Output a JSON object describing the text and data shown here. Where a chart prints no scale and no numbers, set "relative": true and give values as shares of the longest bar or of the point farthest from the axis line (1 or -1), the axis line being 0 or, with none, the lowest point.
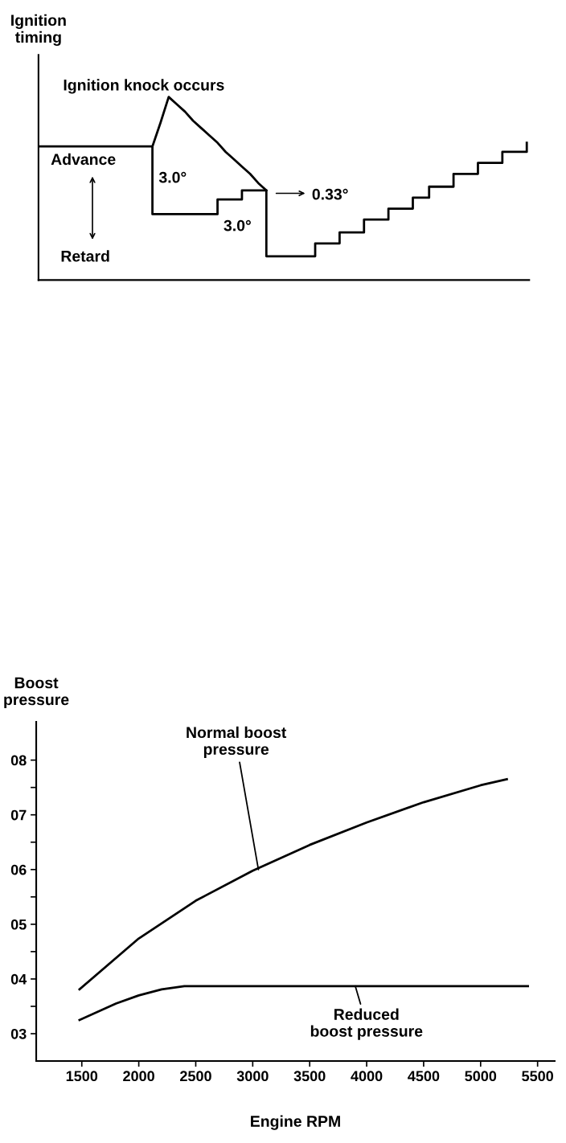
{
  "chart_data": [
    {
      "type": "step",
      "relative": true,
      "ylabel": "Ignition timing",
      "categories": [
        null,
        null,
        null,
        null,
        null,
        null,
        null,
        null,
        null,
        null,
        null,
        null,
        null,
        null,
        null,
        null,
        null,
        null,
        null,
        null,
        null,
        null,
        null,
        null,
        null,
        null,
        null,
        null,
        null,
        null,
        null,
        null,
        null,
        null,
        null,
        null,
        null,
        null,
        null,
        null,
        null,
        null,
        null,
        null,
        null,
        null,
        null,
        null,
        null,
        null,
        null,
        null,
        null,
        null,
        null,
        null,
        null,
        null,
        null,
        null,
        null
      ],
      "series": [
        {
          "type": "step",
          "color": "#000000",
          "values": [
            0.73,
            0.73,
            0.73,
            0.73,
            0.73,
            0.73,
            0.73,
            0.73,
            0.73,
            0.73,
            0.73,
            0.73,
            0.73,
            0.73,
            0.36,
            0.36,
            0.36,
            0.36,
            0.36,
            0.36,
            0.36,
            0.36,
            0.44,
            0.44,
            0.44,
            0.49,
            0.49,
            0.49,
            0.13,
            0.13,
            0.13,
            0.13,
            0.13,
            0.13,
            0.2,
            0.2,
            0.2,
            0.26,
            0.26,
            0.26,
            0.33,
            0.33,
            0.33,
            0.39,
            0.39,
            0.39,
            0.45,
            0.45,
            0.51,
            0.51,
            0.51,
            0.58,
            0.58,
            0.58,
            0.64,
            0.64,
            0.64,
            0.7,
            0.7,
            0.7,
            0.75
          ]
        },
        {
          "type": "line",
          "color": "#000000",
          "values": [
            null,
            null,
            null,
            null,
            null,
            null,
            null,
            null,
            null,
            null,
            null,
            null,
            null,
            null,
            0.73,
            0.86,
            1.0,
            0.96,
            0.92,
            0.87,
            0.83,
            0.79,
            0.75,
            0.7,
            0.66,
            0.62,
            0.58,
            0.53,
            0.49,
            null,
            null,
            null,
            null,
            null,
            null,
            null,
            null,
            null,
            null,
            null,
            null,
            null,
            null,
            null,
            null,
            null,
            null,
            null,
            null,
            null,
            null,
            null,
            null,
            null,
            null,
            null,
            null,
            null,
            null,
            null,
            null
          ]
        }
      ],
      "annotations": [
        "Ignition knock occurs",
        "Advance",
        "Retard",
        "3.0°",
        "3.0°",
        "0.33°"
      ],
      "grid": false
    },
    {
      "type": "line",
      "ylabel": "Boost pressure",
      "xlabel": "Engine RPM",
      "xlim": [
        1100,
        5650
      ],
      "xticks": [
        1500,
        2000,
        2500,
        3000,
        3500,
        4000,
        4500,
        5000,
        5500
      ],
      "ylim": [
        2.5,
        8.7
      ],
      "yticks": [
        {
          "value": 3,
          "label": "03"
        },
        {
          "value": 3.5,
          "label": null
        },
        {
          "value": 4,
          "label": "04"
        },
        {
          "value": 4.5,
          "label": null
        },
        {
          "value": 5,
          "label": "05"
        },
        {
          "value": 5.5,
          "label": null
        },
        {
          "value": 6,
          "label": "06"
        },
        {
          "value": 6.5,
          "label": null
        },
        {
          "value": 7,
          "label": "07"
        },
        {
          "value": 7.5,
          "label": null
        },
        {
          "value": 8,
          "label": "08"
        }
      ],
      "series": [
        {
          "color": "#000000",
          "x": [
            1480,
            2000,
            2500,
            3000,
            3500,
            4000,
            4500,
            5000,
            5230
          ],
          "values": [
            3.81,
            4.74,
            5.43,
            5.98,
            6.45,
            6.86,
            7.23,
            7.54,
            7.65
          ]
        },
        {
          "color": "#000000",
          "x": [
            1480,
            1800,
            2000,
            2200,
            2400,
            3000,
            4000,
            5000,
            5415
          ],
          "values": [
            3.25,
            3.55,
            3.7,
            3.81,
            3.87,
            3.87,
            3.87,
            3.87,
            3.87
          ]
        }
      ],
      "annotations": [
        {
          "text": "Normal boost\npressure",
          "x": 3050,
          "y": 6.0
        },
        {
          "text": "Reduced\nboost pressure",
          "x": 3900,
          "y": 3.87
        }
      ],
      "grid": false,
      "marker": "none",
      "line_style": "solid"
    }
  ]
}
